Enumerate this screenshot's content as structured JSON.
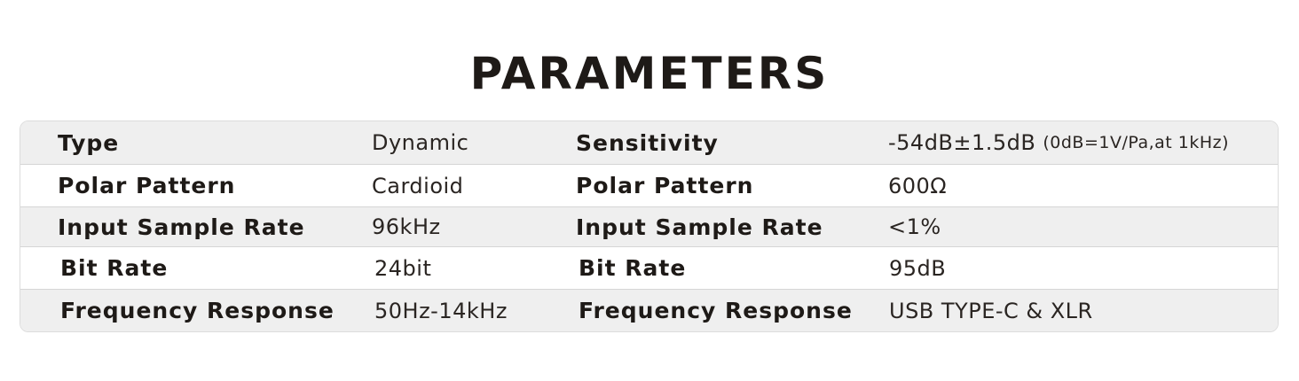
{
  "title": "PARAMETERS",
  "rows": [
    {
      "label1": "Type",
      "value1": "Dynamic",
      "label2": "Sensitivity",
      "value2": "-54dB±1.5dB",
      "value2_note": "(0dB=1V/Pa,at 1kHz)"
    },
    {
      "label1": "Polar Pattern",
      "value1": "Cardioid",
      "label2": "Polar Pattern",
      "value2": "600Ω"
    },
    {
      "label1": "Input Sample Rate",
      "value1": "96kHz",
      "label2": "Input Sample Rate",
      "value2": "<1%"
    },
    {
      "label1": "Bit Rate",
      "value1": "24bit",
      "label2": "Bit Rate",
      "value2": "95dB"
    },
    {
      "label1": "Frequency Response",
      "value1": "50Hz-14kHz",
      "label2": "Frequency Response",
      "value2": "USB TYPE-C & XLR"
    }
  ]
}
